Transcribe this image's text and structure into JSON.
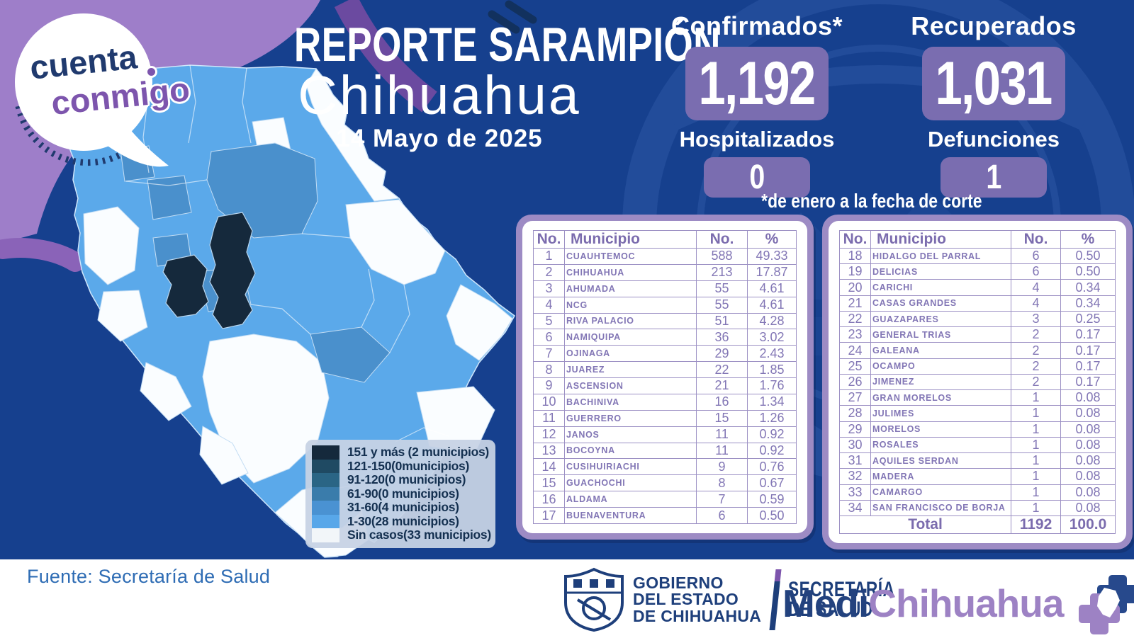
{
  "brand": {
    "line1": "cuenta",
    "line2": "conmigo"
  },
  "title": {
    "report": "REPORTE SARAMPIÓN",
    "state": "Chihuahua",
    "date": "14 Mayo de 2025"
  },
  "stats": {
    "confirmados": {
      "label": "Confirmados*",
      "value": "1,192"
    },
    "recuperados": {
      "label": "Recuperados",
      "value": "1,031"
    },
    "hospitalizados": {
      "label": "Hospitalizados",
      "value": "0"
    },
    "defunciones": {
      "label": "Defunciones",
      "value": "1"
    }
  },
  "footnote": "*de enero a la fecha de corte",
  "legend": {
    "items": [
      {
        "label": "151 y más (2 municipios)",
        "color": "#15293c"
      },
      {
        "label": "121-150(0municipios)",
        "color": "#1f4a63"
      },
      {
        "label": "91-120(0 municipios)",
        "color": "#2a6585"
      },
      {
        "label": "61-90(0 municipios)",
        "color": "#3a7cab"
      },
      {
        "label": "31-60(4 municipios)",
        "color": "#4a92d2"
      },
      {
        "label": "1-30(28 municipios)",
        "color": "#58a7e9"
      },
      {
        "label": "Sin casos(33 municipios)",
        "color": "#f2f6f9"
      }
    ]
  },
  "tables": {
    "headers": [
      "No.",
      "Municipio",
      "No.",
      "%"
    ],
    "left": {
      "rows": [
        {
          "no": "1",
          "municipio": "CUAUHTEMOC",
          "count": "588",
          "pct": "49.33"
        },
        {
          "no": "2",
          "municipio": "CHIHUAHUA",
          "count": "213",
          "pct": "17.87"
        },
        {
          "no": "3",
          "municipio": "AHUMADA",
          "count": "55",
          "pct": "4.61"
        },
        {
          "no": "4",
          "municipio": "NCG",
          "count": "55",
          "pct": "4.61"
        },
        {
          "no": "5",
          "municipio": "RIVA PALACIO",
          "count": "51",
          "pct": "4.28"
        },
        {
          "no": "6",
          "municipio": "NAMIQUIPA",
          "count": "36",
          "pct": "3.02"
        },
        {
          "no": "7",
          "municipio": "OJINAGA",
          "count": "29",
          "pct": "2.43"
        },
        {
          "no": "8",
          "municipio": "JUAREZ",
          "count": "22",
          "pct": "1.85"
        },
        {
          "no": "9",
          "municipio": "ASCENSION",
          "count": "21",
          "pct": "1.76"
        },
        {
          "no": "10",
          "municipio": "BACHINIVA",
          "count": "16",
          "pct": "1.34"
        },
        {
          "no": "11",
          "municipio": "GUERRERO",
          "count": "15",
          "pct": "1.26"
        },
        {
          "no": "12",
          "municipio": "JANOS",
          "count": "11",
          "pct": "0.92"
        },
        {
          "no": "13",
          "municipio": "BOCOYNA",
          "count": "11",
          "pct": "0.92"
        },
        {
          "no": "14",
          "municipio": "CUSIHUIRIACHI",
          "count": "9",
          "pct": "0.76"
        },
        {
          "no": "15",
          "municipio": "GUACHOCHI",
          "count": "8",
          "pct": "0.67"
        },
        {
          "no": "16",
          "municipio": "ALDAMA",
          "count": "7",
          "pct": "0.59"
        },
        {
          "no": "17",
          "municipio": "BUENAVENTURA",
          "count": "6",
          "pct": "0.50"
        }
      ]
    },
    "right": {
      "rows": [
        {
          "no": "18",
          "municipio": "HIDALGO DEL PARRAL",
          "count": "6",
          "pct": "0.50"
        },
        {
          "no": "19",
          "municipio": "DELICIAS",
          "count": "6",
          "pct": "0.50"
        },
        {
          "no": "20",
          "municipio": "CARICHI",
          "count": "4",
          "pct": "0.34"
        },
        {
          "no": "21",
          "municipio": "CASAS GRANDES",
          "count": "4",
          "pct": "0.34"
        },
        {
          "no": "22",
          "municipio": "GUAZAPARES",
          "count": "3",
          "pct": "0.25"
        },
        {
          "no": "23",
          "municipio": "GENERAL TRIAS",
          "count": "2",
          "pct": "0.17"
        },
        {
          "no": "24",
          "municipio": "GALEANA",
          "count": "2",
          "pct": "0.17"
        },
        {
          "no": "25",
          "municipio": "OCAMPO",
          "count": "2",
          "pct": "0.17"
        },
        {
          "no": "26",
          "municipio": "JIMENEZ",
          "count": "2",
          "pct": "0.17"
        },
        {
          "no": "27",
          "municipio": "GRAN MORELOS",
          "count": "1",
          "pct": "0.08"
        },
        {
          "no": "28",
          "municipio": "JULIMES",
          "count": "1",
          "pct": "0.08"
        },
        {
          "no": "29",
          "municipio": "MORELOS",
          "count": "1",
          "pct": "0.08"
        },
        {
          "no": "30",
          "municipio": "ROSALES",
          "count": "1",
          "pct": "0.08"
        },
        {
          "no": "31",
          "municipio": "AQUILES SERDAN",
          "count": "1",
          "pct": "0.08"
        },
        {
          "no": "32",
          "municipio": "MADERA",
          "count": "1",
          "pct": "0.08"
        },
        {
          "no": "33",
          "municipio": "CAMARGO",
          "count": "1",
          "pct": "0.08"
        },
        {
          "no": "34",
          "municipio": "SAN FRANCISCO DE BORJA",
          "count": "1",
          "pct": "0.08"
        }
      ],
      "total": {
        "label": "Total",
        "count": "1192",
        "pct": "100.0"
      }
    }
  },
  "footer": {
    "source": "Fuente: Secretaría de Salud",
    "gov_lines": [
      "GOBIERNO",
      "DEL ESTADO",
      "DE CHIHUAHUA"
    ],
    "health_lines": [
      "SECRETARÍA",
      "DE SALUD"
    ],
    "medi": {
      "part1": "Medi",
      "part2": "Chihuahua"
    }
  },
  "colors": {
    "background": "#16408e",
    "stat_box": "#7a6db0",
    "table_frame": "#9d8bc4",
    "table_text": "#8276b5",
    "map_dark": "#15293c",
    "map_mid": "#4a90cc",
    "map_light": "#5ba9ea",
    "brand_navy": "#203a6e",
    "brand_purple": "#7d55ad"
  }
}
